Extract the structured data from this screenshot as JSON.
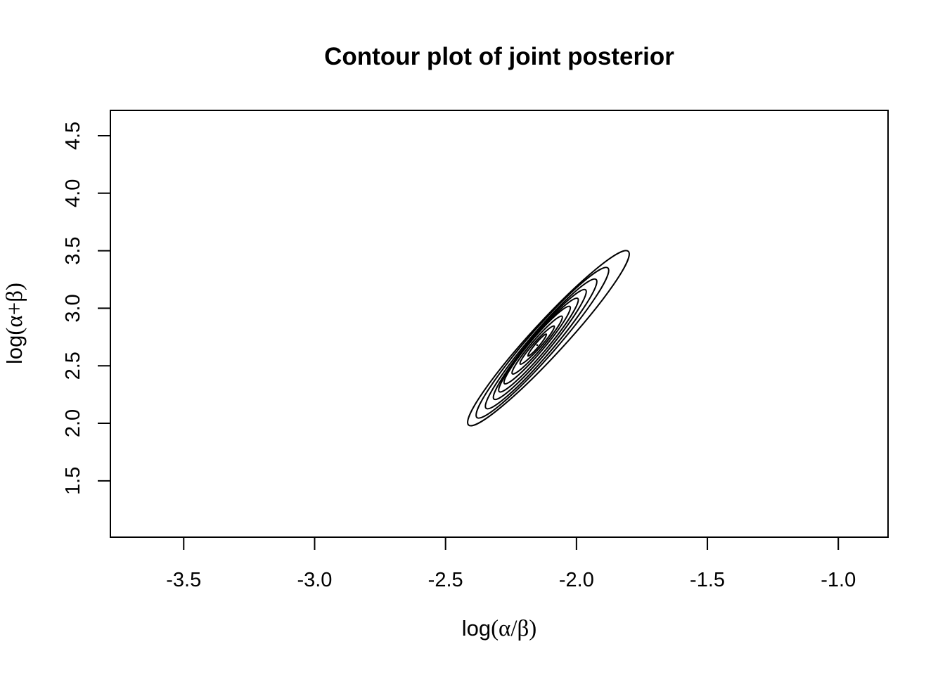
{
  "chart_data": {
    "type": "contour",
    "title": "Contour plot of joint posterior",
    "xlabel": "log(α/β)",
    "ylabel": "log(α+β)",
    "xlim": [
      -3.78,
      -0.81
    ],
    "ylim": [
      1.01,
      4.72
    ],
    "x_ticks": [
      {
        "value": -3.5,
        "label": "-3.5"
      },
      {
        "value": -3.0,
        "label": "-3.0"
      },
      {
        "value": -2.5,
        "label": "-2.5"
      },
      {
        "value": -2.0,
        "label": "-2.0"
      },
      {
        "value": -1.5,
        "label": "-1.5"
      },
      {
        "value": -1.0,
        "label": "-1.0"
      }
    ],
    "y_ticks": [
      {
        "value": 1.5,
        "label": "1.5"
      },
      {
        "value": 2.0,
        "label": "2.0"
      },
      {
        "value": 2.5,
        "label": "2.5"
      },
      {
        "value": 3.0,
        "label": "3.0"
      },
      {
        "value": 3.5,
        "label": "3.5"
      },
      {
        "value": 4.0,
        "label": "4.0"
      },
      {
        "value": 4.5,
        "label": "4.5"
      }
    ],
    "grid": false,
    "legend": "none",
    "line_color": "#000000",
    "posterior_mode": {
      "x": -2.15,
      "y": 2.68
    },
    "contour_levels": [
      {
        "level": 0.05,
        "center_x": -2.107,
        "center_y": 2.74,
        "lower_left": {
          "x": -2.4,
          "y": 1.98
        },
        "upper_right": {
          "x": -1.79,
          "y": 3.49
        }
      },
      {
        "level": 0.15,
        "center_x": -2.13,
        "center_y": 2.7,
        "lower_left": {
          "x": -2.37,
          "y": 2.05
        },
        "upper_right": {
          "x": -1.87,
          "y": 3.35
        }
      },
      {
        "level": 0.25,
        "center_x": -2.135,
        "center_y": 2.69,
        "lower_left": {
          "x": -2.34,
          "y": 2.12
        },
        "upper_right": {
          "x": -1.92,
          "y": 3.24
        }
      },
      {
        "level": 0.35,
        "center_x": -2.14,
        "center_y": 2.685,
        "lower_left": {
          "x": -2.31,
          "y": 2.2
        },
        "upper_right": {
          "x": -1.96,
          "y": 3.15
        }
      },
      {
        "level": 0.45,
        "center_x": -2.145,
        "center_y": 2.68,
        "lower_left": {
          "x": -2.29,
          "y": 2.26
        },
        "upper_right": {
          "x": -1.99,
          "y": 3.07
        }
      },
      {
        "level": 0.55,
        "center_x": -2.15,
        "center_y": 2.68,
        "lower_left": {
          "x": -2.27,
          "y": 2.33
        },
        "upper_right": {
          "x": -2.02,
          "y": 3.0
        }
      },
      {
        "level": 0.65,
        "center_x": -2.15,
        "center_y": 2.68,
        "lower_left": {
          "x": -2.24,
          "y": 2.42
        },
        "upper_right": {
          "x": -2.05,
          "y": 2.92
        }
      },
      {
        "level": 0.75,
        "center_x": -2.15,
        "center_y": 2.68,
        "lower_left": {
          "x": -2.21,
          "y": 2.51
        },
        "upper_right": {
          "x": -2.08,
          "y": 2.84
        }
      },
      {
        "level": 0.85,
        "center_x": -2.15,
        "center_y": 2.68,
        "lower_left": {
          "x": -2.18,
          "y": 2.58
        },
        "upper_right": {
          "x": -2.11,
          "y": 2.77
        }
      }
    ]
  }
}
